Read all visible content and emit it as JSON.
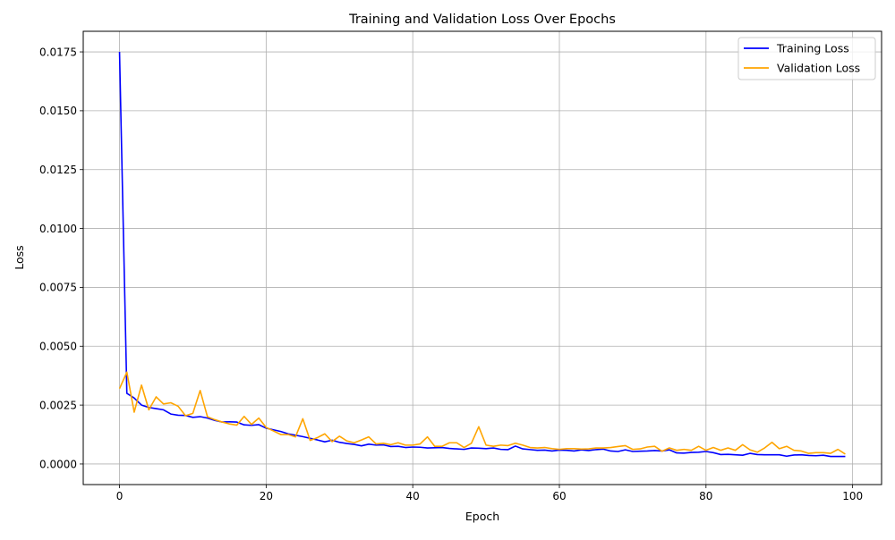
{
  "chart_data": {
    "type": "line",
    "title": "Training and Validation Loss Over Epochs",
    "xlabel": "Epoch",
    "ylabel": "Loss",
    "xlim": [
      -4.95,
      103.95
    ],
    "ylim": [
      -0.000875,
      0.018375
    ],
    "x_ticks": [
      0,
      20,
      40,
      60,
      80,
      100
    ],
    "x_tick_labels": [
      "0",
      "20",
      "40",
      "60",
      "80",
      "100"
    ],
    "y_ticks": [
      0.0,
      0.0025,
      0.005,
      0.0075,
      0.01,
      0.0125,
      0.015,
      0.0175
    ],
    "y_tick_labels": [
      "0.0000",
      "0.0025",
      "0.0050",
      "0.0075",
      "0.0100",
      "0.0125",
      "0.0150",
      "0.0175"
    ],
    "grid": true,
    "legend_position": "top-right",
    "x": [
      0,
      1,
      2,
      3,
      4,
      5,
      6,
      7,
      8,
      9,
      10,
      11,
      12,
      13,
      14,
      15,
      16,
      17,
      18,
      19,
      20,
      21,
      22,
      23,
      24,
      25,
      26,
      27,
      28,
      29,
      30,
      31,
      32,
      33,
      34,
      35,
      36,
      37,
      38,
      39,
      40,
      41,
      42,
      43,
      44,
      45,
      46,
      47,
      48,
      49,
      50,
      51,
      52,
      53,
      54,
      55,
      56,
      57,
      58,
      59,
      60,
      61,
      62,
      63,
      64,
      65,
      66,
      67,
      68,
      69,
      70,
      71,
      72,
      73,
      74,
      75,
      76,
      77,
      78,
      79,
      80,
      81,
      82,
      83,
      84,
      85,
      86,
      87,
      88,
      89,
      90,
      91,
      92,
      93,
      94,
      95,
      96,
      97,
      98,
      99
    ],
    "series": [
      {
        "name": "Training Loss",
        "color": "#0000ff",
        "values": [
          0.0175,
          0.003,
          0.0028,
          0.0025,
          0.0024,
          0.00235,
          0.0023,
          0.00212,
          0.00207,
          0.00206,
          0.00198,
          0.00201,
          0.00195,
          0.00185,
          0.00178,
          0.00179,
          0.00178,
          0.00166,
          0.00164,
          0.00167,
          0.00152,
          0.00145,
          0.00138,
          0.00128,
          0.00122,
          0.00116,
          0.00109,
          0.00102,
          0.00094,
          0.00101,
          0.00092,
          0.00087,
          0.00083,
          0.00077,
          0.00084,
          0.0008,
          0.00081,
          0.00074,
          0.00075,
          0.0007,
          0.00072,
          0.00071,
          0.00068,
          0.00069,
          0.0007,
          0.00066,
          0.00064,
          0.00062,
          0.00068,
          0.00067,
          0.00065,
          0.00068,
          0.00062,
          0.00061,
          0.00076,
          0.00064,
          0.00061,
          0.00058,
          0.00059,
          0.00055,
          0.00059,
          0.00058,
          0.00055,
          0.0006,
          0.00057,
          0.00061,
          0.00063,
          0.00055,
          0.00053,
          0.0006,
          0.00053,
          0.00054,
          0.00055,
          0.00057,
          0.00055,
          0.0006,
          0.00047,
          0.00046,
          0.00049,
          0.0005,
          0.00053,
          0.00048,
          0.0004,
          0.00041,
          0.00039,
          0.00037,
          0.00045,
          0.0004,
          0.00039,
          0.00039,
          0.00039,
          0.00033,
          0.00038,
          0.00039,
          0.00036,
          0.00035,
          0.00037,
          0.00032,
          0.00032,
          0.00032
        ]
      },
      {
        "name": "Validation Loss",
        "color": "#ffa500",
        "values": [
          0.0032,
          0.0039,
          0.0022,
          0.00335,
          0.0023,
          0.00285,
          0.00255,
          0.0026,
          0.00245,
          0.00205,
          0.00215,
          0.00312,
          0.002,
          0.00188,
          0.00178,
          0.0017,
          0.00165,
          0.00202,
          0.00168,
          0.00195,
          0.00155,
          0.0014,
          0.00125,
          0.00125,
          0.00115,
          0.00192,
          0.001,
          0.00112,
          0.00128,
          0.00095,
          0.00118,
          0.00098,
          0.0009,
          0.00102,
          0.00115,
          0.00085,
          0.00088,
          0.00082,
          0.0009,
          0.0008,
          0.0008,
          0.00085,
          0.00115,
          0.00075,
          0.00075,
          0.0009,
          0.0009,
          0.0007,
          0.00088,
          0.00158,
          0.0008,
          0.00075,
          0.0008,
          0.00078,
          0.00088,
          0.0008,
          0.0007,
          0.00068,
          0.0007,
          0.00065,
          0.00062,
          0.00065,
          0.00065,
          0.00063,
          0.00064,
          0.00068,
          0.00068,
          0.0007,
          0.00074,
          0.00078,
          0.00062,
          0.00064,
          0.00072,
          0.00075,
          0.00054,
          0.00068,
          0.00058,
          0.00062,
          0.00058,
          0.00075,
          0.00058,
          0.0007,
          0.00058,
          0.00068,
          0.00058,
          0.00082,
          0.0006,
          0.0005,
          0.00068,
          0.00092,
          0.00065,
          0.00075,
          0.00058,
          0.00055,
          0.00045,
          0.00048,
          0.00048,
          0.00045,
          0.00062,
          0.00042
        ]
      }
    ]
  }
}
